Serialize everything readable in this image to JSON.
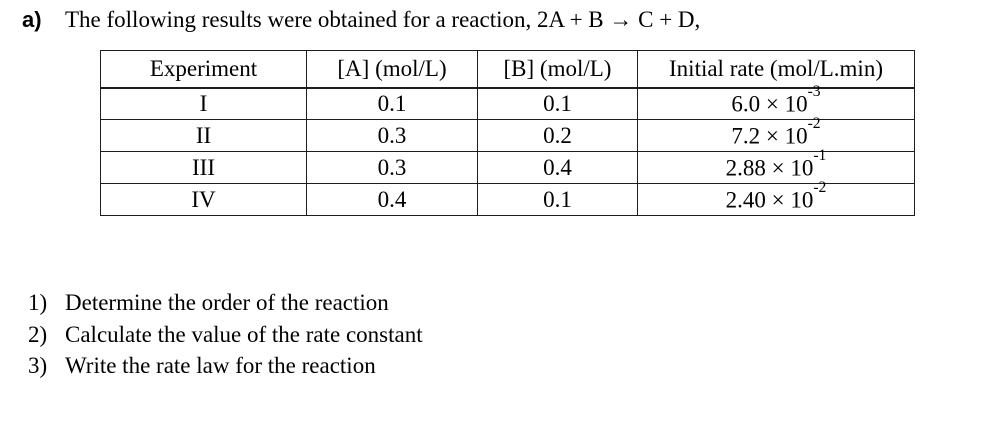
{
  "heading": {
    "label": "a)",
    "text": "The following results were obtained for a reaction, 2A + B → C + D,"
  },
  "table": {
    "headers": {
      "experiment": "Experiment",
      "conc_a": "[A] (mol/L)",
      "conc_b": "[B] (mol/L)",
      "rate": "Initial rate (mol/L.min)"
    },
    "rows": [
      {
        "experiment": "I",
        "conc_a": "0.1",
        "conc_b": "0.1",
        "rate_base": "6.0 × 10",
        "rate_exp": "-3"
      },
      {
        "experiment": "II",
        "conc_a": "0.3",
        "conc_b": "0.2",
        "rate_base": "7.2 × 10",
        "rate_exp": "-2"
      },
      {
        "experiment": "III",
        "conc_a": "0.3",
        "conc_b": "0.4",
        "rate_base": "2.88 × 10",
        "rate_exp": "-1"
      },
      {
        "experiment": "IV",
        "conc_a": "0.4",
        "conc_b": "0.1",
        "rate_base": "2.40 × 10",
        "rate_exp": "-2"
      }
    ]
  },
  "questions": [
    {
      "number": "1)",
      "text": "Determine the order of the reaction"
    },
    {
      "number": "2)",
      "text": "Calculate the value of the rate constant"
    },
    {
      "number": "3)",
      "text": "Write the rate law for the reaction"
    }
  ]
}
